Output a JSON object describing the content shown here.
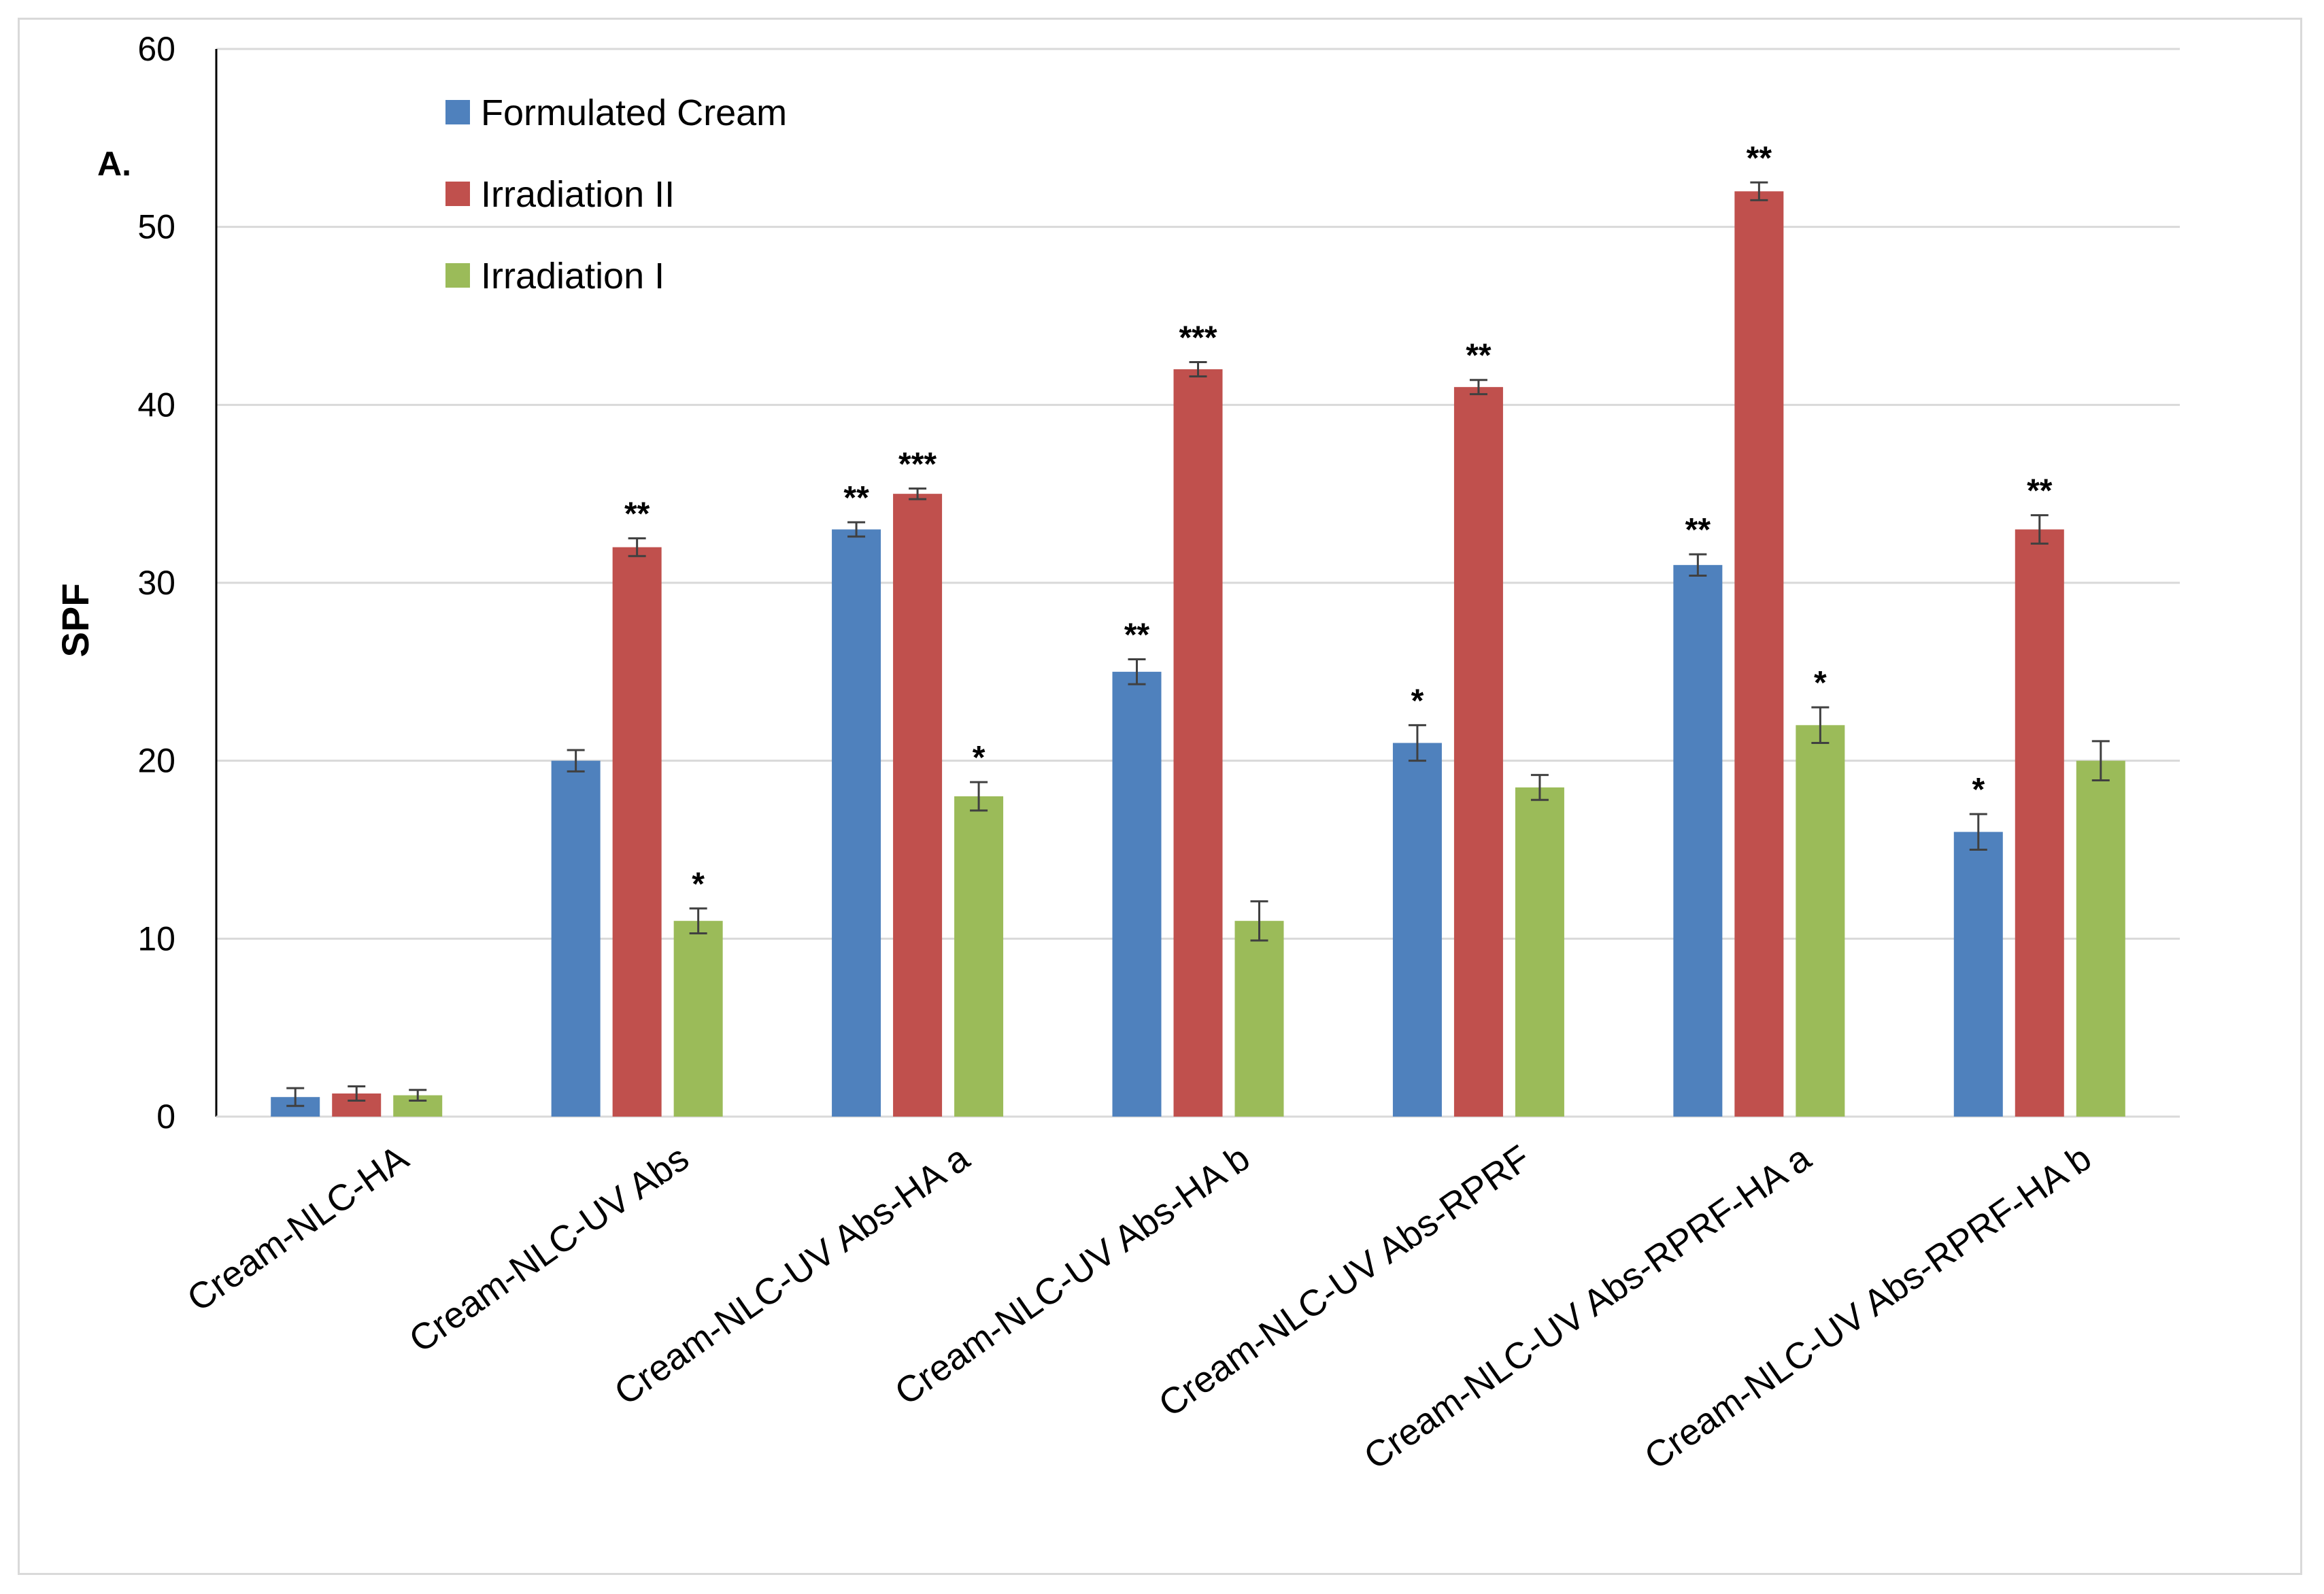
{
  "chart_data": {
    "type": "bar",
    "title": "",
    "panel_label": "A.",
    "xlabel": "",
    "ylabel": "SPF",
    "ylim": [
      0,
      60
    ],
    "yticks": [
      "0",
      "10",
      "20",
      "30",
      "40",
      "50",
      "60"
    ],
    "grid": true,
    "legend_position": "top-left",
    "categories": [
      "Cream-NLC-HA",
      "Cream-NLC-UV Abs",
      "Cream-NLC-UV Abs-HA a",
      "Cream-NLC-UV Abs-HA b",
      "Cream-NLC-UV Abs-RPRF",
      "Cream-NLC-UV Abs-RPRF-HA a",
      "Cream-NLC-UV Abs-RPRF-HA b"
    ],
    "series": [
      {
        "name": "Formulated Cream",
        "color": "#4f81bd",
        "values": [
          1.1,
          20,
          33,
          25,
          21,
          31,
          16
        ],
        "errors": [
          0.5,
          0.6,
          0.4,
          0.7,
          1.0,
          0.6,
          1.0
        ],
        "significance": [
          "",
          "",
          "**",
          "**",
          "*",
          "**",
          "*"
        ]
      },
      {
        "name": "Irradiation II",
        "color": "#c0504d",
        "values": [
          1.3,
          32,
          35,
          42,
          41,
          52,
          33
        ],
        "errors": [
          0.4,
          0.5,
          0.3,
          0.4,
          0.4,
          0.5,
          0.8
        ],
        "significance": [
          "",
          "**",
          "***",
          "***",
          "**",
          "**",
          "**"
        ]
      },
      {
        "name": "Irradiation I",
        "color": "#9bbb59",
        "values": [
          1.2,
          11,
          18,
          11,
          18.5,
          22,
          20
        ],
        "errors": [
          0.3,
          0.7,
          0.8,
          1.1,
          0.7,
          1.0,
          1.1
        ],
        "significance": [
          "",
          "*",
          "*",
          "",
          "",
          "*",
          ""
        ]
      }
    ]
  }
}
